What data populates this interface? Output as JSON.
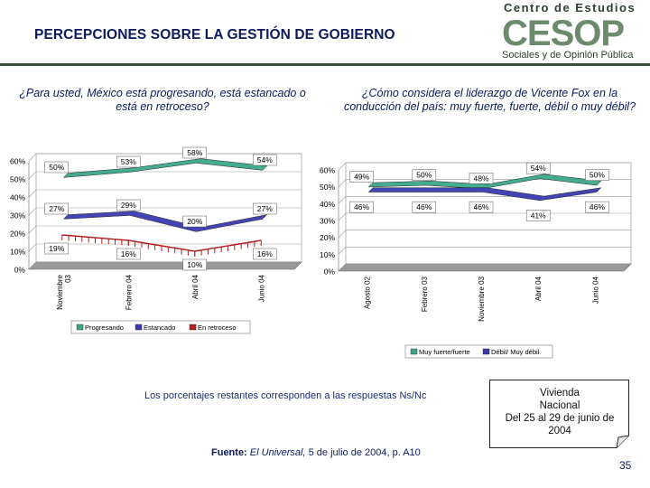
{
  "header": {
    "title": "PERCEPCIONES SOBRE LA GESTIÓN DE GOBIERNO",
    "logo_top": "Centro de Estudios",
    "logo_mark": "CESOP",
    "logo_bottom": "Sociales y de Opinión Pública"
  },
  "questions": {
    "left": "¿Para usted, México está progresando, está estancado o está en retroceso?",
    "right": "¿Cómo considera el liderazgo de Vicente Fox en la conducción del país: muy fuerte, fuerte, débil o muy débil?"
  },
  "chart_data": [
    {
      "type": "line",
      "title": "",
      "categories": [
        "Noviembre 03",
        "Febrero 04",
        "Abril 04",
        "Junio 04"
      ],
      "ylim": [
        0,
        60
      ],
      "yticks": [
        "0%",
        "10%",
        "20%",
        "30%",
        "40%",
        "50%",
        "60%"
      ],
      "series": [
        {
          "name": "Progresando",
          "values": [
            50,
            53,
            58,
            54
          ],
          "labels": [
            "50%",
            "53%",
            "58%",
            "54%"
          ],
          "color": "#3aa88a"
        },
        {
          "name": "Estancado",
          "values": [
            27,
            29,
            20,
            27
          ],
          "labels": [
            "27%",
            "29%",
            "20%",
            "27%"
          ],
          "color": "#3a3ab0"
        },
        {
          "name": "En retroceso",
          "values": [
            19,
            16,
            10,
            16
          ],
          "labels": [
            "19%",
            "16%",
            "10%",
            "16%"
          ],
          "color": "#b02020"
        }
      ]
    },
    {
      "type": "line",
      "title": "",
      "categories": [
        "Agosto 02",
        "Febrero 03",
        "Noviembre 03",
        "Abril 04",
        "Junio 04"
      ],
      "ylim": [
        0,
        60
      ],
      "yticks": [
        "0%",
        "10%",
        "20%",
        "30%",
        "40%",
        "50%",
        "60%"
      ],
      "series": [
        {
          "name": "Muy fuerte/fuerte",
          "values": [
            49,
            50,
            48,
            54,
            50
          ],
          "labels": [
            "49%",
            "50%",
            "48%",
            "54%",
            "50%"
          ],
          "color": "#3aa88a"
        },
        {
          "name": "Débil/ Muy débil",
          "values": [
            46,
            46,
            46,
            41,
            46
          ],
          "labels": [
            "46%",
            "46%",
            "46%",
            "41%",
            "46%"
          ],
          "color": "#3a3ab0"
        }
      ]
    }
  ],
  "footer": {
    "note": "Los porcentajes restantes corresponden a las respuestas Ns/Nc",
    "source_label": "Fuente:",
    "source_pub": "El Universal,",
    "source_rest": "5 de julio de 2004, p. A10",
    "box_line1": "Vivienda",
    "box_line2": "Nacional",
    "box_line3": "Del 25 al 29 de junio de",
    "box_line4": "2004",
    "page": "35"
  },
  "colors": {
    "title": "#0c1a5e",
    "floor": "#9a9a9a",
    "wall": "#ffffff"
  }
}
